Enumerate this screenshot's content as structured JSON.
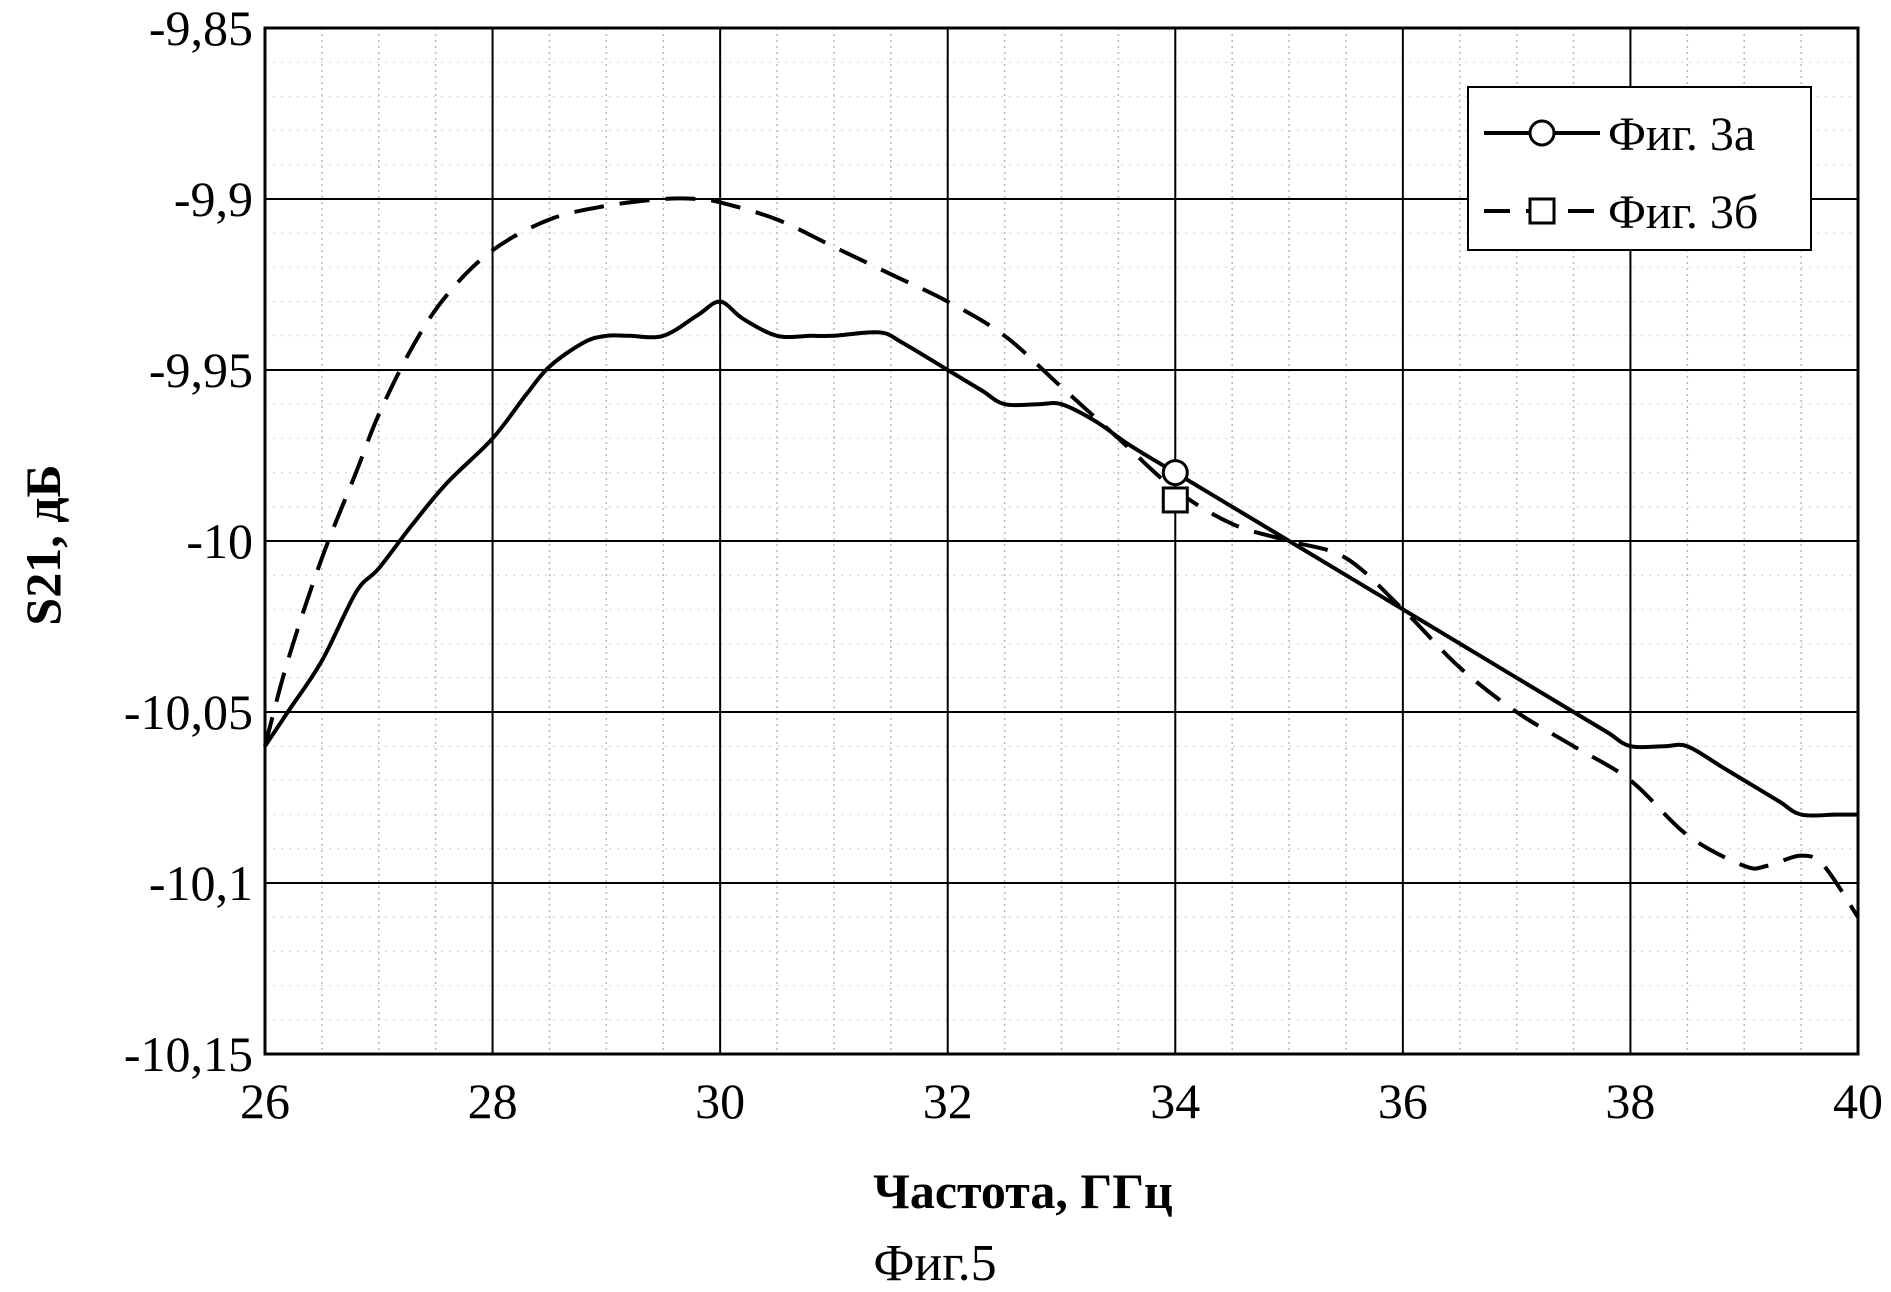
{
  "chart_data": {
    "type": "line",
    "caption": "Фиг.5",
    "xlabel": "Частота, ГГц",
    "ylabel": "S21, дБ",
    "xlim": [
      26,
      40
    ],
    "ylim": [
      -10.15,
      -9.85
    ],
    "x_ticks": [
      26,
      28,
      30,
      32,
      34,
      36,
      38,
      40
    ],
    "x_tick_labels": [
      "26",
      "28",
      "30",
      "32",
      "34",
      "36",
      "38",
      "40"
    ],
    "y_ticks": [
      -9.85,
      -9.9,
      -9.95,
      -10,
      -10.05,
      -10.1,
      -10.15
    ],
    "y_tick_labels": [
      "-9,85",
      "-9,9",
      "-9,95",
      "-10",
      "-10,05",
      "-10,1",
      "-10,15"
    ],
    "grid": "major and minor",
    "legend_position": "top-right",
    "series": [
      {
        "name": "Фиг. 3а",
        "style": "solid",
        "marker": "circle",
        "marker_at": [
          34,
          -9.98
        ],
        "color": "#000000",
        "x": [
          26,
          26.2,
          26.5,
          26.8,
          27,
          27.3,
          27.6,
          28,
          28.3,
          28.5,
          28.8,
          29,
          29.2,
          29.5,
          29.8,
          30,
          30.2,
          30.5,
          30.8,
          31,
          31.4,
          31.6,
          32,
          32.3,
          32.5,
          32.8,
          33,
          33.3,
          33.6,
          34,
          34.5,
          35,
          35.5,
          36,
          36.5,
          37,
          37.5,
          37.8,
          38,
          38.3,
          38.5,
          38.8,
          39,
          39.3,
          39.5,
          39.8,
          40
        ],
        "y": [
          -10.06,
          -10.05,
          -10.035,
          -10.015,
          -10.008,
          -9.995,
          -9.983,
          -9.97,
          -9.957,
          -9.949,
          -9.942,
          -9.94,
          -9.94,
          -9.94,
          -9.934,
          -9.93,
          -9.935,
          -9.94,
          -9.94,
          -9.94,
          -9.939,
          -9.942,
          -9.95,
          -9.956,
          -9.96,
          -9.96,
          -9.96,
          -9.965,
          -9.972,
          -9.98,
          -9.99,
          -10.0,
          -10.01,
          -10.02,
          -10.03,
          -10.04,
          -10.05,
          -10.056,
          -10.06,
          -10.06,
          -10.06,
          -10.066,
          -10.07,
          -10.076,
          -10.08,
          -10.08,
          -10.08
        ]
      },
      {
        "name": "Фиг. 3б",
        "style": "dashed",
        "marker": "square",
        "marker_at": [
          34,
          -9.988
        ],
        "color": "#000000",
        "x": [
          26,
          26.2,
          26.5,
          26.8,
          27,
          27.3,
          27.6,
          28,
          28.5,
          29,
          29.5,
          29.8,
          30,
          30.5,
          31,
          31.5,
          32,
          32.5,
          33,
          33.5,
          34,
          34.5,
          35,
          35.5,
          36,
          36.5,
          37,
          37.5,
          38,
          38.5,
          39,
          39.2,
          39.5,
          39.7,
          40
        ],
        "y": [
          -10.06,
          -10.035,
          -10.005,
          -9.98,
          -9.963,
          -9.943,
          -9.928,
          -9.915,
          -9.906,
          -9.902,
          -9.9,
          -9.9,
          -9.901,
          -9.906,
          -9.914,
          -9.922,
          -9.93,
          -9.94,
          -9.955,
          -9.97,
          -9.985,
          -9.995,
          -10.0,
          -10.005,
          -10.02,
          -10.037,
          -10.05,
          -10.06,
          -10.07,
          -10.086,
          -10.095,
          -10.095,
          -10.092,
          -10.095,
          -10.11
        ]
      }
    ]
  }
}
